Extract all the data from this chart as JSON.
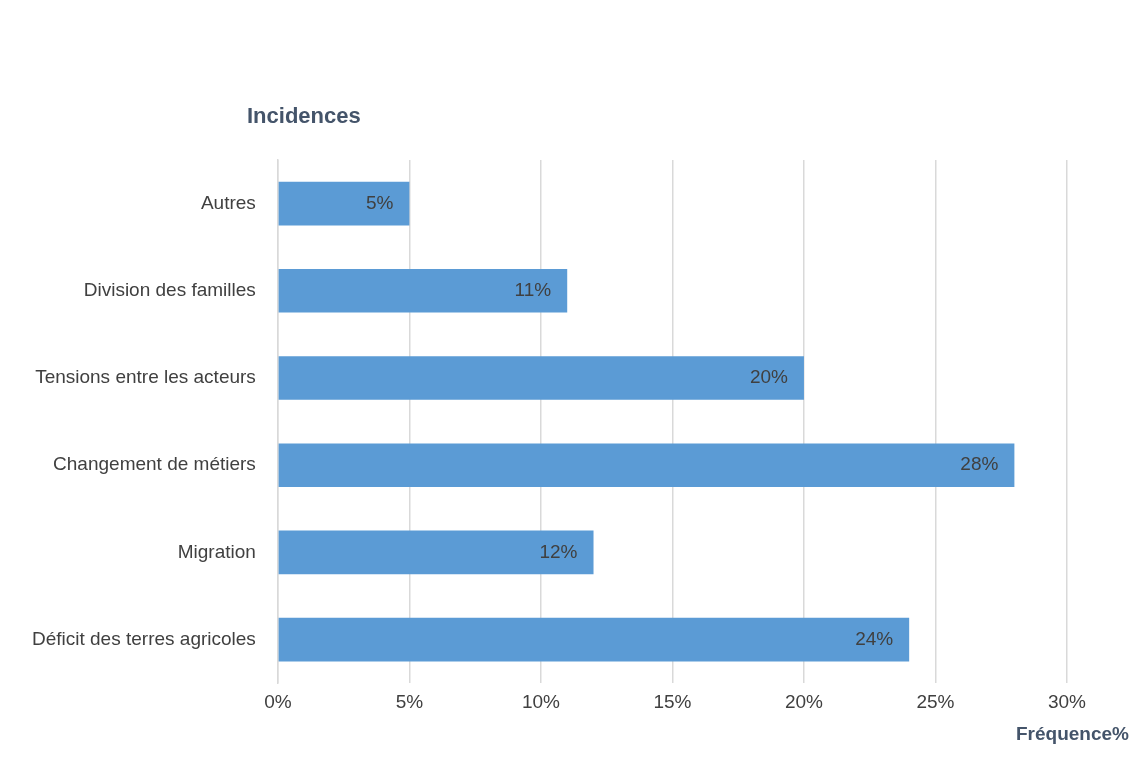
{
  "chart_data": {
    "type": "bar",
    "orientation": "horizontal",
    "title": "Incidences",
    "xlabel": "Fréquence%",
    "categories": [
      "Autres",
      "Division des familles",
      "Tensions entre les acteurs",
      "Changement de métiers",
      "Migration",
      "Déficit des terres agricoles"
    ],
    "values": [
      5,
      11,
      20,
      28,
      12,
      24
    ],
    "value_labels": [
      "5%",
      "11%",
      "20%",
      "28%",
      "12%",
      "24%"
    ],
    "color": "#5b9bd5",
    "xlim": [
      0,
      30
    ],
    "xticks": [
      {
        "value": 0,
        "label": "0%"
      },
      {
        "value": 5,
        "label": "5%"
      },
      {
        "value": 10,
        "label": "10%"
      },
      {
        "value": 15,
        "label": "15%"
      },
      {
        "value": 20,
        "label": "20%"
      },
      {
        "value": 25,
        "label": "25%"
      },
      {
        "value": 30,
        "label": "30%"
      }
    ],
    "grid": "x",
    "legend": false
  }
}
